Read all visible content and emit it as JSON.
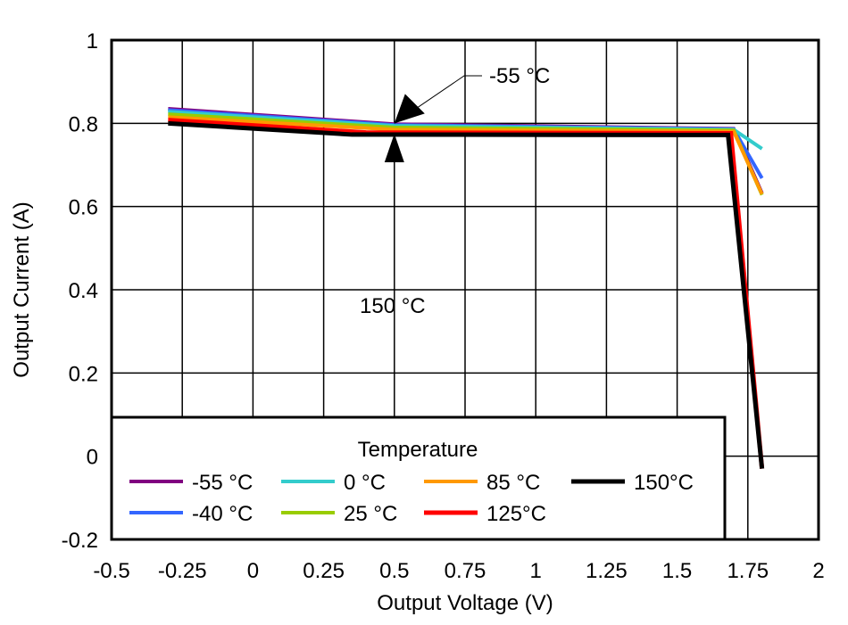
{
  "chart_data": {
    "type": "line",
    "title": "",
    "xlabel": "Output Voltage (V)",
    "ylabel": "Output Current (A)",
    "xlim": [
      -0.5,
      2
    ],
    "ylim": [
      -0.2,
      1
    ],
    "xticks": [
      "-0.5",
      "-0.25",
      "0",
      "0.25",
      "0.5",
      "0.75",
      "1",
      "1.25",
      "1.5",
      "1.75",
      "2"
    ],
    "yticks": [
      "-0.2",
      "0",
      "0.2",
      "0.4",
      "0.6",
      "0.8",
      "1"
    ],
    "grid": true,
    "legend": {
      "title": "Temperature",
      "placement": "bottom-left"
    },
    "series": [
      {
        "name": "-55 °C",
        "color": "#800080",
        "points": [
          [
            -0.3,
            0.835
          ],
          [
            0.5,
            0.798
          ],
          [
            1.7,
            0.787
          ],
          [
            1.8,
            0.632
          ]
        ]
      },
      {
        "name": "-40 °C",
        "color": "#3366ff",
        "points": [
          [
            -0.3,
            0.832
          ],
          [
            0.5,
            0.796
          ],
          [
            1.7,
            0.786
          ],
          [
            1.8,
            0.668
          ]
        ]
      },
      {
        "name": "0 °C",
        "color": "#33cccc",
        "points": [
          [
            -0.3,
            0.828
          ],
          [
            0.5,
            0.794
          ],
          [
            1.7,
            0.785
          ],
          [
            1.8,
            0.739
          ]
        ]
      },
      {
        "name": "25 °C",
        "color": "#99cc00",
        "points": [
          [
            -0.3,
            0.822
          ],
          [
            0.5,
            0.79
          ],
          [
            1.7,
            0.783
          ],
          [
            1.8,
            0.628
          ]
        ]
      },
      {
        "name": "85 °C",
        "color": "#ff9900",
        "points": [
          [
            -0.3,
            0.815
          ],
          [
            0.5,
            0.785
          ],
          [
            1.7,
            0.78
          ],
          [
            1.8,
            0.63
          ]
        ]
      },
      {
        "name": "125°C",
        "color": "#ff0000",
        "points": [
          [
            -0.3,
            0.808
          ],
          [
            0.4,
            0.778
          ],
          [
            1.69,
            0.776
          ],
          [
            1.8,
            -0.03
          ]
        ]
      },
      {
        "name": "150°C",
        "color": "#000000",
        "points": [
          [
            -0.3,
            0.8
          ],
          [
            0.35,
            0.773
          ],
          [
            1.68,
            0.772
          ],
          [
            1.8,
            -0.03
          ]
        ]
      }
    ],
    "annotations": [
      {
        "text": "-55 °C",
        "arrow_to": [
          0.5,
          0.8
        ]
      },
      {
        "text": "150 °C",
        "arrow_to": [
          0.5,
          0.775
        ]
      }
    ]
  }
}
